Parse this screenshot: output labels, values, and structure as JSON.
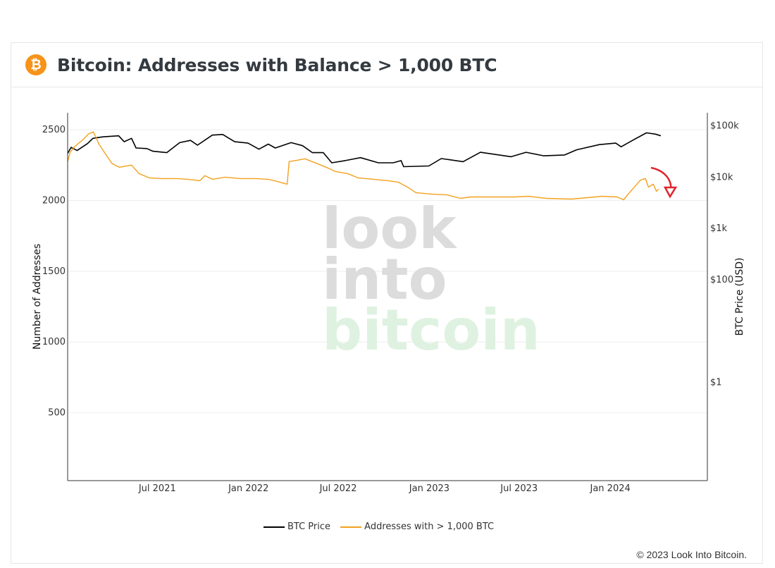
{
  "header": {
    "logo_symbol": "₿",
    "title": "Bitcoin: Addresses with Balance > 1,000 BTC"
  },
  "watermark": [
    "look",
    "into",
    "bitcoin"
  ],
  "copyright": "© 2023 Look Into Bitcoin.",
  "colors": {
    "brand": "#f7931a",
    "price_line": "#000000",
    "addresses_line": "#f2a11e",
    "annotation_arrow": "#e0252b"
  },
  "chart_data": {
    "type": "line",
    "x_axis": {
      "ticks": [
        "Jul 2021",
        "Jan 2022",
        "Jul 2022",
        "Jan 2023",
        "Jul 2023",
        "Jan 2024"
      ],
      "range": [
        "2021-01-01",
        "2024-07-15"
      ]
    },
    "y_axis_left": {
      "label": "Number of Addresses",
      "ticks": [
        500,
        1000,
        1500,
        2000,
        2500
      ],
      "range": [
        20,
        2620
      ],
      "grid": true
    },
    "y_axis_right": {
      "label": "BTC Price (USD)",
      "scale": "log",
      "ticks": [
        "$1",
        "$100",
        "$1k",
        "$10k",
        "$100k"
      ],
      "tick_values": [
        1,
        100,
        1000,
        10000,
        100000
      ],
      "range": [
        0.012,
        180000
      ]
    },
    "legend": {
      "placement": "bottom-center"
    },
    "series": [
      {
        "name": "BTC Price",
        "axis": "right",
        "points": [
          [
            "2021-01-01",
            29000
          ],
          [
            "2021-01-08",
            38000
          ],
          [
            "2021-01-20",
            33000
          ],
          [
            "2021-02-10",
            45000
          ],
          [
            "2021-02-21",
            57000
          ],
          [
            "2021-03-13",
            61000
          ],
          [
            "2021-04-14",
            64000
          ],
          [
            "2021-04-25",
            49000
          ],
          [
            "2021-05-10",
            57000
          ],
          [
            "2021-05-19",
            37000
          ],
          [
            "2021-06-10",
            36000
          ],
          [
            "2021-06-22",
            32000
          ],
          [
            "2021-07-20",
            30000
          ],
          [
            "2021-08-15",
            47000
          ],
          [
            "2021-09-06",
            52000
          ],
          [
            "2021-09-20",
            42000
          ],
          [
            "2021-10-20",
            66000
          ],
          [
            "2021-11-10",
            68000
          ],
          [
            "2021-12-04",
            49000
          ],
          [
            "2021-12-31",
            46000
          ],
          [
            "2022-01-22",
            35000
          ],
          [
            "2022-02-10",
            44000
          ],
          [
            "2022-02-24",
            37000
          ],
          [
            "2022-03-28",
            47000
          ],
          [
            "2022-04-20",
            41000
          ],
          [
            "2022-05-10",
            30000
          ],
          [
            "2022-06-01",
            30000
          ],
          [
            "2022-06-18",
            19000
          ],
          [
            "2022-07-15",
            21000
          ],
          [
            "2022-08-15",
            24000
          ],
          [
            "2022-09-20",
            19000
          ],
          [
            "2022-10-20",
            19000
          ],
          [
            "2022-11-05",
            21000
          ],
          [
            "2022-11-10",
            16000
          ],
          [
            "2022-12-31",
            16500
          ],
          [
            "2023-01-25",
            23000
          ],
          [
            "2023-03-10",
            20000
          ],
          [
            "2023-04-14",
            30500
          ],
          [
            "2023-06-15",
            25000
          ],
          [
            "2023-07-15",
            30500
          ],
          [
            "2023-08-20",
            26000
          ],
          [
            "2023-10-01",
            27000
          ],
          [
            "2023-10-25",
            34000
          ],
          [
            "2023-12-10",
            43000
          ],
          [
            "2024-01-12",
            46000
          ],
          [
            "2024-01-23",
            39000
          ],
          [
            "2024-02-15",
            52000
          ],
          [
            "2024-03-14",
            73000
          ],
          [
            "2024-04-01",
            69000
          ],
          [
            "2024-04-12",
            64000
          ]
        ]
      },
      {
        "name": "Addresses with > 1,000 BTC",
        "axis": "left",
        "points": [
          [
            "2021-01-01",
            2275
          ],
          [
            "2021-01-06",
            2340
          ],
          [
            "2021-01-15",
            2380
          ],
          [
            "2021-02-01",
            2430
          ],
          [
            "2021-02-12",
            2470
          ],
          [
            "2021-02-22",
            2485
          ],
          [
            "2021-03-05",
            2400
          ],
          [
            "2021-03-20",
            2320
          ],
          [
            "2021-04-01",
            2260
          ],
          [
            "2021-04-15",
            2235
          ],
          [
            "2021-05-10",
            2250
          ],
          [
            "2021-05-25",
            2190
          ],
          [
            "2021-06-15",
            2160
          ],
          [
            "2021-07-10",
            2155
          ],
          [
            "2021-08-10",
            2155
          ],
          [
            "2021-09-01",
            2150
          ],
          [
            "2021-09-25",
            2140
          ],
          [
            "2021-10-05",
            2175
          ],
          [
            "2021-10-20",
            2150
          ],
          [
            "2021-11-15",
            2165
          ],
          [
            "2021-12-15",
            2155
          ],
          [
            "2022-01-15",
            2155
          ],
          [
            "2022-02-10",
            2150
          ],
          [
            "2022-02-28",
            2135
          ],
          [
            "2022-03-20",
            2115
          ],
          [
            "2022-03-24",
            2275
          ],
          [
            "2022-04-10",
            2285
          ],
          [
            "2022-04-25",
            2295
          ],
          [
            "2022-05-20",
            2260
          ],
          [
            "2022-06-10",
            2230
          ],
          [
            "2022-06-25",
            2205
          ],
          [
            "2022-07-20",
            2190
          ],
          [
            "2022-08-10",
            2160
          ],
          [
            "2022-09-10",
            2150
          ],
          [
            "2022-10-10",
            2140
          ],
          [
            "2022-10-30",
            2130
          ],
          [
            "2022-11-20",
            2090
          ],
          [
            "2022-12-05",
            2055
          ],
          [
            "2023-01-05",
            2045
          ],
          [
            "2023-02-05",
            2040
          ],
          [
            "2023-03-05",
            2015
          ],
          [
            "2023-03-25",
            2025
          ],
          [
            "2023-05-05",
            2025
          ],
          [
            "2023-06-20",
            2025
          ],
          [
            "2023-07-20",
            2030
          ],
          [
            "2023-08-25",
            2015
          ],
          [
            "2023-10-15",
            2010
          ],
          [
            "2023-11-15",
            2020
          ],
          [
            "2023-12-15",
            2030
          ],
          [
            "2024-01-15",
            2025
          ],
          [
            "2024-01-28",
            2005
          ],
          [
            "2024-02-05",
            2040
          ],
          [
            "2024-02-20",
            2100
          ],
          [
            "2024-03-02",
            2145
          ],
          [
            "2024-03-12",
            2155
          ],
          [
            "2024-03-18",
            2095
          ],
          [
            "2024-03-28",
            2115
          ],
          [
            "2024-04-03",
            2065
          ],
          [
            "2024-04-08",
            2080
          ]
        ]
      }
    ]
  }
}
